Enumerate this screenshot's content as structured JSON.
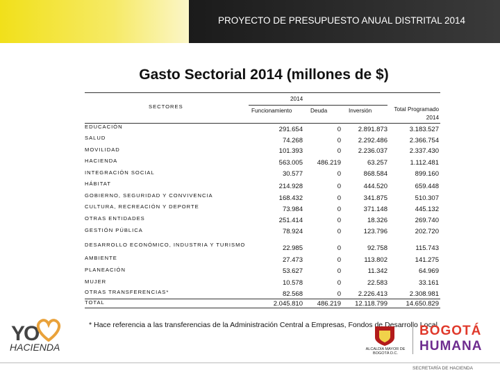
{
  "header": {
    "title": "PROYECTO DE PRESUPUESTO ANUAL DISTRITAL 2014"
  },
  "title": "Gasto Sectorial 2014 (millones de $)",
  "table": {
    "group_header": "2014",
    "sector_header": "SECTORES",
    "columns": [
      "Funcionamiento",
      "Deuda",
      "Inversión",
      "Total Programado 2014"
    ],
    "rows": [
      [
        "EDUCACIÓN",
        "291.654",
        "0",
        "2.891.873",
        "3.183.527"
      ],
      [
        "SALUD",
        "74.268",
        "0",
        "2.292.486",
        "2.366.754"
      ],
      [
        "MOVILIDAD",
        "101.393",
        "0",
        "2.236.037",
        "2.337.430"
      ],
      [
        "HACIENDA",
        "563.005",
        "486.219",
        "63.257",
        "1.112.481"
      ],
      [
        "INTEGRACIÓN SOCIAL",
        "30.577",
        "0",
        "868.584",
        "899.160"
      ],
      [
        "HÁBITAT",
        "214.928",
        "0",
        "444.520",
        "659.448"
      ],
      [
        "GOBIERNO, SEGURIDAD Y CONVIVENCIA",
        "168.432",
        "0",
        "341.875",
        "510.307"
      ],
      [
        "CULTURA, RECREACIÓN Y DEPORTE",
        "73.984",
        "0",
        "371.148",
        "445.132"
      ],
      [
        "OTRAS ENTIDADES",
        "251.414",
        "0",
        "18.326",
        "269.740"
      ],
      [
        "GESTIÓN PÚBLICA",
        "78.924",
        "0",
        "123.796",
        "202.720"
      ],
      [
        "DESARROLLO ECONÓMICO, INDUSTRIA Y TURISMO",
        "22.985",
        "0",
        "92.758",
        "115.743"
      ],
      [
        "AMBIENTE",
        "27.473",
        "0",
        "113.802",
        "141.275"
      ],
      [
        "PLANEACIÓN",
        "53.627",
        "0",
        "11.342",
        "64.969"
      ],
      [
        "MUJER",
        "10.578",
        "0",
        "22.583",
        "33.161"
      ],
      [
        "OTRAS TRANSFERENCIAS*",
        "82.568",
        "0",
        "2.226.413",
        "2.308.981"
      ]
    ],
    "total": [
      "TOTAL",
      "2.045.810",
      "486.219",
      "12.118.799",
      "14.650.829"
    ]
  },
  "footnote": "* Hace referencia a las transferencias de la Administración Central a Empresas, Fondos de Desarrollo Local",
  "logos": {
    "yo": "YO",
    "hacienda": "HACIENDA",
    "alcaldia": "ALCALDÍA MAYOR DE BOGOTÁ D.C.",
    "bogota": "BOGOTÁ",
    "humana": "HUMANA",
    "secretaria": "SECRETARÍA DE HACIENDA"
  }
}
